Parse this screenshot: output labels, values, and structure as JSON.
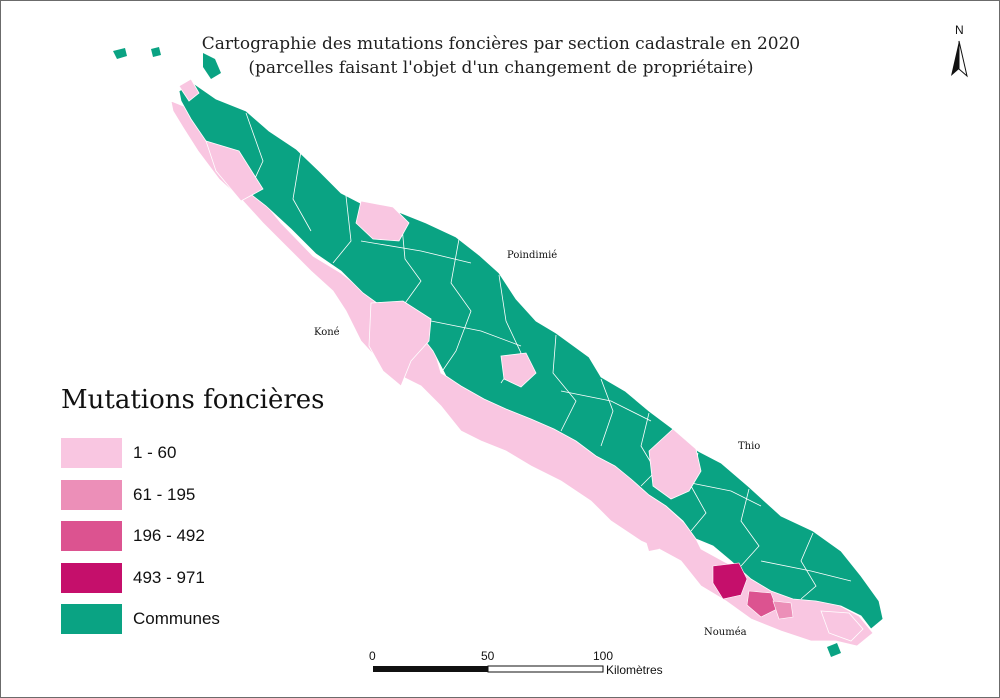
{
  "title": {
    "line1": "Cartographie des mutations foncières par section cadastrale en 2020",
    "line2": "(parcelles faisant l'objet d'un changement de propriétaire)"
  },
  "legend": {
    "title": "Mutations foncières",
    "classes": [
      {
        "label": "1 - 60",
        "color": "#f9c6e1"
      },
      {
        "label": "61 - 195",
        "color": "#ec8fb8"
      },
      {
        "label": "196 - 492",
        "color": "#dc5390"
      },
      {
        "label": "493 - 971",
        "color": "#c50f6b"
      },
      {
        "label": "Communes",
        "color": "#0aa383"
      }
    ]
  },
  "cities": {
    "poindimie": "Poindimié",
    "kone": "Koné",
    "thio": "Thio",
    "noumea": "Nouméa"
  },
  "scale_bar": {
    "ticks": [
      "0",
      "50",
      "100"
    ],
    "unit": "Kilomètres"
  },
  "north_arrow": {
    "letter": "N"
  },
  "colors": {
    "communes": "#0aa383",
    "class_1": "#f9c6e1",
    "class_2": "#ec8fb8",
    "class_3": "#dc5390",
    "class_4": "#c50f6b",
    "border": "#ffffff"
  }
}
